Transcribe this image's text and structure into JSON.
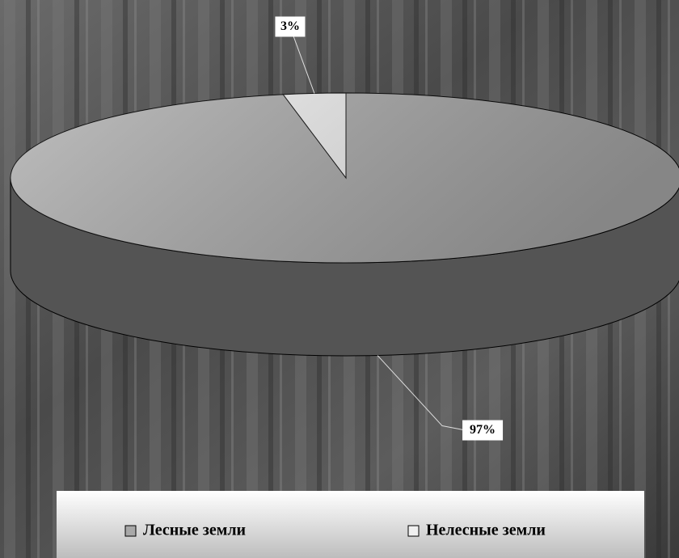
{
  "chart_data": {
    "type": "pie3d",
    "categories": [
      "Лесные земли",
      "Нелесные земли"
    ],
    "values": [
      97,
      3
    ],
    "value_labels": [
      "97%",
      "3%"
    ],
    "colors": [
      "#a8a8a8",
      "#f0f0f0"
    ]
  }
}
